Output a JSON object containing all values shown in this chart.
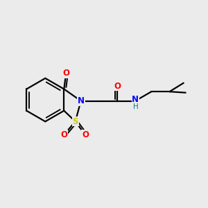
{
  "bg_color": "#ebebeb",
  "bond_color": "#000000",
  "atom_colors": {
    "O": "#ff0000",
    "N": "#0000ff",
    "S": "#cccc00",
    "H": "#008080"
  },
  "figsize": [
    3.0,
    3.0
  ],
  "dpi": 100,
  "lw": 1.6,
  "fs": 8.5
}
